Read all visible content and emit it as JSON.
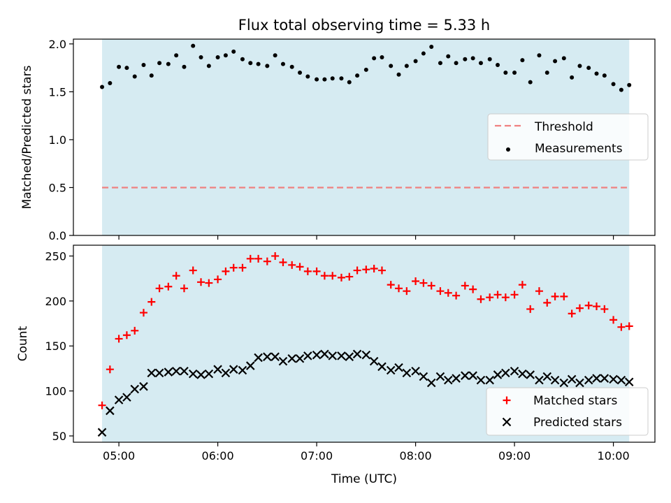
{
  "chart_data": {
    "type": "scatter",
    "title": "Flux total observing time = 5.33 h",
    "xlabel": "Time (UTC)",
    "x_ticks": [
      "05:00",
      "06:00",
      "07:00",
      "08:00",
      "09:00",
      "10:00"
    ],
    "x_tick_hours": [
      5,
      6,
      7,
      8,
      9,
      10
    ],
    "xlim": [
      4.54,
      10.42
    ],
    "shaded_span": [
      4.83,
      10.16
    ],
    "shade_color": "#add8e6",
    "time_hours": [
      4.83,
      4.91,
      5.0,
      5.08,
      5.16,
      5.25,
      5.33,
      5.41,
      5.5,
      5.58,
      5.66,
      5.75,
      5.83,
      5.91,
      6.0,
      6.08,
      6.16,
      6.25,
      6.33,
      6.41,
      6.5,
      6.58,
      6.66,
      6.75,
      6.83,
      6.91,
      7.0,
      7.08,
      7.16,
      7.25,
      7.33,
      7.41,
      7.5,
      7.58,
      7.66,
      7.75,
      7.83,
      7.91,
      8.0,
      8.08,
      8.16,
      8.25,
      8.33,
      8.41,
      8.5,
      8.58,
      8.66,
      8.75,
      8.83,
      8.91,
      9.0,
      9.08,
      9.16,
      9.25,
      9.33,
      9.41,
      9.5,
      9.58,
      9.66,
      9.75,
      9.83,
      9.91,
      10.0,
      10.08,
      10.16
    ],
    "panels": [
      {
        "ylabel": "Matched/Predicted stars",
        "ylim": [
          0,
          2.05
        ],
        "y_ticks": [
          "0.0",
          "0.5",
          "1.0",
          "1.5",
          "2.0"
        ],
        "y_tick_values": [
          0,
          0.5,
          1.0,
          1.5,
          2.0
        ],
        "threshold": 0.5,
        "threshold_color": "#f08080",
        "series": [
          {
            "name": "Measurements",
            "marker": "dot",
            "color": "#000000",
            "values": [
              1.55,
              1.59,
              1.76,
              1.75,
              1.66,
              1.78,
              1.67,
              1.8,
              1.79,
              1.88,
              1.76,
              1.98,
              1.86,
              1.77,
              1.86,
              1.88,
              1.92,
              1.84,
              1.8,
              1.79,
              1.77,
              1.88,
              1.79,
              1.76,
              1.7,
              1.66,
              1.63,
              1.63,
              1.64,
              1.64,
              1.6,
              1.67,
              1.73,
              1.85,
              1.86,
              1.77,
              1.68,
              1.77,
              1.82,
              1.9,
              1.97,
              1.8,
              1.87,
              1.8,
              1.84,
              1.85,
              1.8,
              1.84,
              1.78,
              1.7,
              1.7,
              1.83,
              1.6,
              1.88,
              1.7,
              1.82,
              1.85,
              1.65,
              1.77,
              1.75,
              1.69,
              1.67,
              1.58,
              1.52,
              1.57
            ]
          }
        ],
        "legend": {
          "position": "center-right",
          "entries": [
            "Threshold",
            "Measurements"
          ]
        }
      },
      {
        "ylabel": "Count",
        "ylim": [
          43,
          262
        ],
        "y_ticks": [
          "50",
          "100",
          "150",
          "200",
          "250"
        ],
        "y_tick_values": [
          50,
          100,
          150,
          200,
          250
        ],
        "series": [
          {
            "name": "Matched stars",
            "marker": "plus",
            "color": "#ff0000",
            "values": [
              84,
              124,
              158,
              162,
              167,
              187,
              199,
              214,
              216,
              228,
              214,
              234,
              221,
              220,
              224,
              233,
              237,
              237,
              247,
              247,
              244,
              250,
              243,
              240,
              238,
              233,
              233,
              228,
              228,
              226,
              227,
              234,
              235,
              236,
              234,
              218,
              214,
              211,
              222,
              220,
              217,
              211,
              209,
              206,
              217,
              213,
              202,
              204,
              207,
              204,
              207,
              218,
              191,
              211,
              198,
              205,
              205,
              186,
              192,
              195,
              194,
              191,
              179,
              171,
              172
            ]
          },
          {
            "name": "Predicted stars",
            "marker": "x",
            "color": "#000000",
            "values": [
              54,
              78,
              90,
              93,
              102,
              105,
              120,
              120,
              121,
              122,
              122,
              119,
              118,
              119,
              124,
              120,
              124,
              123,
              128,
              137,
              138,
              138,
              133,
              136,
              136,
              139,
              140,
              141,
              139,
              139,
              138,
              141,
              140,
              133,
              127,
              123,
              126,
              120,
              122,
              116,
              109,
              116,
              112,
              114,
              117,
              117,
              112,
              112,
              118,
              120,
              122,
              119,
              118,
              112,
              116,
              112,
              109,
              113,
              109,
              112,
              114,
              114,
              113,
              112,
              110
            ]
          }
        ],
        "legend": {
          "position": "bottom-right",
          "entries": [
            "Matched stars",
            "Predicted stars"
          ]
        }
      }
    ]
  }
}
